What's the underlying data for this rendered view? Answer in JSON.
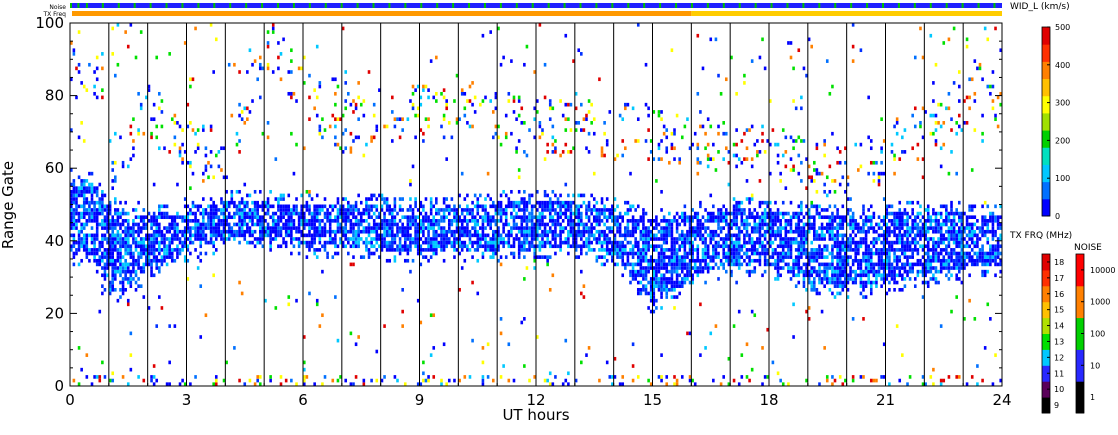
{
  "chart_data": {
    "type": "heatmap",
    "xlabel": "UT hours",
    "ylabel": "Range Gate",
    "xlim": [
      0,
      24
    ],
    "ylim": [
      0,
      100
    ],
    "x_ticks": [
      "0",
      "3",
      "6",
      "9",
      "12",
      "15",
      "18",
      "21",
      "24"
    ],
    "y_ticks": [
      "0",
      "20",
      "40",
      "60",
      "80",
      "100"
    ],
    "x_tick_values": [
      0,
      3,
      6,
      9,
      12,
      15,
      18,
      21,
      24
    ],
    "y_tick_values": [
      0,
      20,
      40,
      60,
      80,
      100
    ],
    "grid": "vertical hour lines",
    "status_bars": {
      "noise_label": "Noise",
      "txfreq_label": "TX Freq"
    },
    "colorbars": {
      "width": {
        "label": "WID_L (km/s)",
        "ticks": [
          "0",
          "100",
          "200",
          "300",
          "400",
          "500"
        ],
        "colors": [
          "#0000ff",
          "#0070ff",
          "#00c8ff",
          "#00e0c0",
          "#00d000",
          "#a0e000",
          "#ffff00",
          "#ffc000",
          "#ff8000",
          "#ff3000",
          "#e00000"
        ]
      },
      "tx_freq": {
        "label": "TX FRQ (MHz)",
        "ticks": [
          "9",
          "10",
          "11",
          "12",
          "13",
          "14",
          "15",
          "16",
          "17",
          "18"
        ],
        "colors": [
          "#000000",
          "#5a005a",
          "#2828ff",
          "#00c8ff",
          "#00e000",
          "#b0e000",
          "#ffc000",
          "#ff8000",
          "#ff3000",
          "#e00000"
        ]
      },
      "noise": {
        "label": "NOISE",
        "ticks": [
          "1",
          "10",
          "100",
          "1000",
          "10000"
        ],
        "colors": [
          "#000000",
          "#2828ff",
          "#00d000",
          "#ff8000",
          "#ff0000"
        ]
      }
    },
    "regions": [
      {
        "name": "main echo band",
        "x": [
          0,
          0.5,
          1,
          1.5,
          2,
          3,
          4,
          5,
          6,
          7,
          8,
          9,
          10,
          11,
          12,
          13,
          14,
          15,
          16,
          17,
          18,
          19,
          20,
          21,
          22,
          23,
          24
        ],
        "y_low": [
          36,
          36,
          26,
          26,
          32,
          37,
          40,
          40,
          38,
          38,
          37,
          36,
          37,
          37,
          38,
          38,
          35,
          22,
          30,
          33,
          33,
          28,
          26,
          28,
          30,
          32,
          33
        ],
        "y_high": [
          56,
          56,
          48,
          48,
          46,
          47,
          50,
          50,
          49,
          49,
          49,
          48,
          49,
          50,
          50,
          50,
          48,
          45,
          47,
          48,
          48,
          47,
          46,
          47,
          47,
          47,
          46
        ]
      },
      {
        "name": "upper scatter",
        "x": [
          1,
          2,
          3,
          4,
          5,
          6,
          7,
          8,
          16,
          18,
          20,
          22,
          24
        ],
        "y_center": [
          60,
          75,
          65,
          62,
          95,
          80,
          70,
          75,
          68,
          62,
          58,
          70,
          85
        ]
      },
      {
        "name": "near-range band",
        "x": [
          0,
          9,
          15.5
        ],
        "y": [
          0,
          2,
          2
        ]
      }
    ]
  }
}
